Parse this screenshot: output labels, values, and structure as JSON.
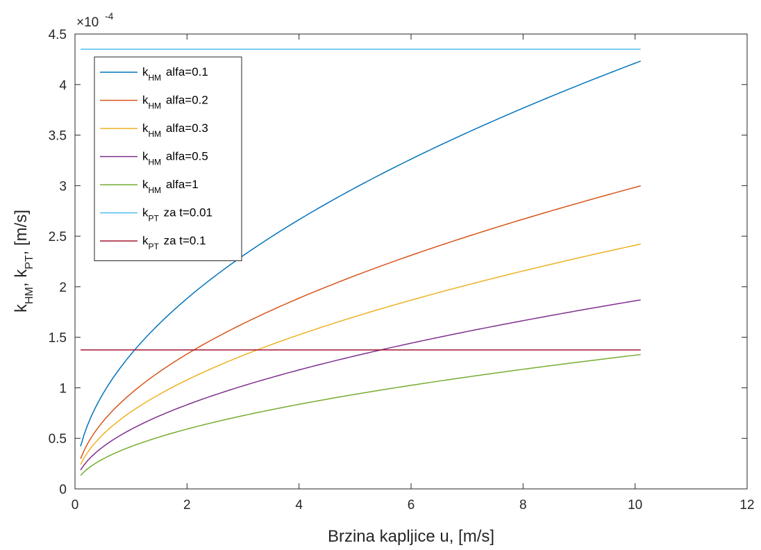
{
  "chart_data": {
    "type": "line",
    "title": "",
    "xlabel": "Brzina kapljice u, [m/s]",
    "ylabel": {
      "parts": [
        {
          "text": "k"
        },
        {
          "text": "HM",
          "sub": true
        },
        {
          "text": ", k"
        },
        {
          "text": "PT",
          "sub": true
        },
        {
          "text": ",  [m/s]"
        }
      ]
    },
    "y_exponent": {
      "base": "×10",
      "power": "-4"
    },
    "xlim": [
      0,
      12
    ],
    "ylim": [
      0,
      4.5
    ],
    "xticks": [
      0,
      2,
      4,
      6,
      8,
      10,
      12
    ],
    "xtick_labels": [
      "0",
      "2",
      "4",
      "6",
      "8",
      "10",
      "12"
    ],
    "yticks": [
      0,
      0.5,
      1,
      1.5,
      2,
      2.5,
      3,
      3.5,
      4,
      4.5
    ],
    "ytick_labels": [
      "0",
      "0.5",
      "1",
      "1.5",
      "2",
      "2.5",
      "3",
      "3.5",
      "4",
      "4.5"
    ],
    "grid": false,
    "legend_position": "top-left",
    "x_range": [
      0.1,
      10.1
    ],
    "series": [
      {
        "name": "k_HM alfa=0.1",
        "legend": {
          "k": "k",
          "sub": "HM",
          "rest": " alfa=0.1"
        },
        "color": "#0072BD",
        "kind": "power",
        "coef": 1.3318,
        "exponent": 0.5,
        "end_value": 4.21
      },
      {
        "name": "k_HM alfa=0.2",
        "legend": {
          "k": "k",
          "sub": "HM",
          "rest": " alfa=0.2"
        },
        "color": "#D95319",
        "kind": "power",
        "coef": 0.9433,
        "exponent": 0.5,
        "end_value": 2.98
      },
      {
        "name": "k_HM alfa=0.3",
        "legend": {
          "k": "k",
          "sub": "HM",
          "rest": " alfa=0.3"
        },
        "color": "#EDB120",
        "kind": "power",
        "coef": 0.7622,
        "exponent": 0.5,
        "end_value": 2.43
      },
      {
        "name": "k_HM alfa=0.5",
        "legend": {
          "k": "k",
          "sub": "HM",
          "rest": " alfa=0.5"
        },
        "color": "#7E2F8E",
        "kind": "power",
        "coef": 0.5884,
        "exponent": 0.5,
        "end_value": 1.88
      },
      {
        "name": "k_HM alfa=1",
        "legend": {
          "k": "k",
          "sub": "HM",
          "rest": " alfa=1"
        },
        "color": "#77AC30",
        "kind": "power",
        "coef": 0.4183,
        "exponent": 0.5,
        "end_value": 1.33
      },
      {
        "name": "k_PT za t=0.01",
        "legend": {
          "k": "k",
          "sub": "PT",
          "rest": " za t=0.01"
        },
        "color": "#4DBEEE",
        "kind": "constant",
        "value": 4.35
      },
      {
        "name": "k_PT za t=0.1",
        "legend": {
          "k": "k",
          "sub": "PT",
          "rest": " za t=0.1"
        },
        "color": "#A2142F",
        "kind": "constant",
        "value": 1.375
      }
    ]
  }
}
